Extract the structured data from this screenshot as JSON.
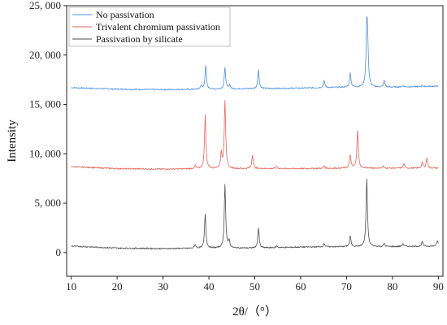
{
  "chart_data": {
    "type": "line",
    "title": "",
    "xlabel": "2θ/（°）",
    "ylabel": "Intensity",
    "xlim": [
      9,
      91
    ],
    "ylim": [
      -2400,
      25000
    ],
    "x_ticks": [
      10,
      20,
      30,
      40,
      50,
      60,
      70,
      80,
      90
    ],
    "x_tick_labels": [
      "10",
      "20",
      "30",
      "40",
      "50",
      "60",
      "70",
      "80",
      "90"
    ],
    "y_ticks": [
      0,
      5000,
      10000,
      15000,
      20000,
      25000
    ],
    "y_tick_labels": [
      "0",
      "5, 000",
      "10, 000",
      "15, 000",
      "20, 000",
      "25, 000"
    ],
    "grid": false,
    "legend_position": "top-left",
    "series": [
      {
        "name": "No passivation",
        "color": "#4a90e2",
        "baseline": [
          [
            10,
            16700
          ],
          [
            20,
            16550
          ],
          [
            30,
            16500
          ],
          [
            40,
            16550
          ],
          [
            50,
            16600
          ],
          [
            60,
            16650
          ],
          [
            70,
            16750
          ],
          [
            80,
            16750
          ],
          [
            90,
            16850
          ]
        ],
        "peaks": [
          {
            "x": 38.3,
            "y": 16900
          },
          {
            "x": 39.3,
            "y": 18900
          },
          {
            "x": 43.5,
            "y": 18700
          },
          {
            "x": 44.5,
            "y": 17000
          },
          {
            "x": 50.8,
            "y": 18500
          },
          {
            "x": 65.1,
            "y": 17400
          },
          {
            "x": 70.8,
            "y": 18200
          },
          {
            "x": 74.4,
            "y": 22400
          },
          {
            "x": 74.6,
            "y": 20200
          },
          {
            "x": 78.2,
            "y": 17400
          },
          {
            "x": 82.3,
            "y": 16900
          },
          {
            "x": 86.5,
            "y": 16900
          }
        ]
      },
      {
        "name": "Trivalent chromium passivation",
        "color": "#e8655a",
        "baseline": [
          [
            10,
            8700
          ],
          [
            20,
            8500
          ],
          [
            30,
            8450
          ],
          [
            40,
            8500
          ],
          [
            50,
            8500
          ],
          [
            60,
            8500
          ],
          [
            70,
            8550
          ],
          [
            80,
            8550
          ],
          [
            90,
            8550
          ]
        ],
        "peaks": [
          {
            "x": 37.0,
            "y": 8800
          },
          {
            "x": 39.2,
            "y": 13900
          },
          {
            "x": 42.7,
            "y": 10000
          },
          {
            "x": 43.5,
            "y": 15400
          },
          {
            "x": 49.5,
            "y": 9900
          },
          {
            "x": 54.8,
            "y": 8750
          },
          {
            "x": 65.1,
            "y": 8800
          },
          {
            "x": 70.8,
            "y": 9900
          },
          {
            "x": 72.4,
            "y": 12400
          },
          {
            "x": 78.0,
            "y": 8750
          },
          {
            "x": 82.5,
            "y": 9000
          },
          {
            "x": 86.5,
            "y": 9100
          },
          {
            "x": 87.5,
            "y": 9600
          }
        ]
      },
      {
        "name": "Passivation by silicate",
        "color": "#4d4d4d",
        "baseline": [
          [
            10,
            650
          ],
          [
            20,
            450
          ],
          [
            30,
            400
          ],
          [
            40,
            450
          ],
          [
            50,
            450
          ],
          [
            60,
            550
          ],
          [
            70,
            600
          ],
          [
            80,
            600
          ],
          [
            90,
            650
          ]
        ],
        "peaks": [
          {
            "x": 37.0,
            "y": 800
          },
          {
            "x": 39.2,
            "y": 3900
          },
          {
            "x": 43.5,
            "y": 6900
          },
          {
            "x": 44.4,
            "y": 1200
          },
          {
            "x": 50.8,
            "y": 2500
          },
          {
            "x": 54.8,
            "y": 650
          },
          {
            "x": 65.1,
            "y": 950
          },
          {
            "x": 70.8,
            "y": 1700
          },
          {
            "x": 74.4,
            "y": 7500
          },
          {
            "x": 78.2,
            "y": 900
          },
          {
            "x": 82.3,
            "y": 900
          },
          {
            "x": 86.5,
            "y": 1100
          },
          {
            "x": 89.8,
            "y": 1200
          }
        ]
      }
    ]
  }
}
